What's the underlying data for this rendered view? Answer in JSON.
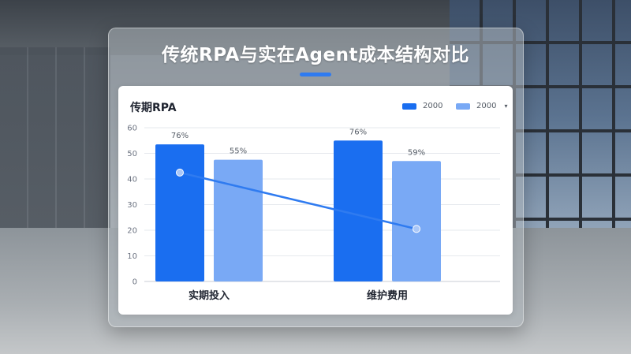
{
  "title": "传统RPA与实在Agent成本结构对比",
  "colors": {
    "accent": "#2f7bf0",
    "series_1": "#1a6ef0",
    "series_2": "#79a9f5",
    "line": "#2f7bf0"
  },
  "chart_data": {
    "type": "bar",
    "title": "传期RPA",
    "categories": [
      "实期投入",
      "维护费用"
    ],
    "ylim": [
      0,
      60
    ],
    "yticks": [
      0,
      10,
      20,
      30,
      40,
      50,
      60
    ],
    "grid": true,
    "legend_position": "top-right",
    "series": [
      {
        "name": "2000",
        "values": [
          53.5,
          55
        ],
        "labels": [
          "76%",
          "76%"
        ],
        "color": "#1a6ef0"
      },
      {
        "name": "2000",
        "values": [
          47.5,
          47
        ],
        "labels": [
          "55%",
          "59%"
        ],
        "color": "#79a9f5"
      }
    ],
    "line": {
      "type": "line",
      "values": [
        42.5,
        20.5
      ],
      "color": "#2f7bf0"
    },
    "legend_dropdown_icon": "chevron-down-icon"
  }
}
